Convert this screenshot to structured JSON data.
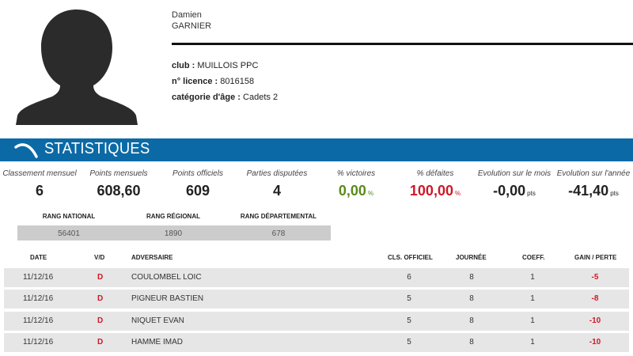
{
  "profile": {
    "first_name": "Damien",
    "last_name": "GARNIER",
    "club_label": "club :",
    "club_value": "MUILLOIS PPC",
    "licence_label": "n° licence :",
    "licence_value": "8016158",
    "category_label": "catégorie d'âge :",
    "category_value": "Cadets 2",
    "avatar_icon": "user-silhouette-icon"
  },
  "banner": {
    "title": "STATISTIQUES",
    "icon": "swoosh-icon",
    "color": "#0b6aa6"
  },
  "stats": [
    {
      "label": "Classement mensuel",
      "value": "6",
      "unit": ""
    },
    {
      "label": "Points mensuels",
      "value": "608,60",
      "unit": ""
    },
    {
      "label": "Points officiels",
      "value": "609",
      "unit": ""
    },
    {
      "label": "Parties disputées",
      "value": "4",
      "unit": ""
    },
    {
      "label": "% victoires",
      "value": "0,00",
      "unit": "%"
    },
    {
      "label": "% défaites",
      "value": "100,00",
      "unit": "%"
    },
    {
      "label": "Evolution sur le mois",
      "value": "-0,00",
      "unit": "pts"
    },
    {
      "label": "Evolution sur l'année",
      "value": "-41,40",
      "unit": "pts"
    }
  ],
  "ranks": [
    {
      "label": "RANG NATIONAL",
      "value": "56401"
    },
    {
      "label": "RANG RÉGIONAL",
      "value": "1890"
    },
    {
      "label": "RANG DÉPARTEMENTAL",
      "value": "678"
    }
  ],
  "table": {
    "headers": {
      "date": "DATE",
      "vd": "V/D",
      "adversaire": "ADVERSAIRE",
      "cls": "CLS. OFFICIEL",
      "journee": "JOURNÉE",
      "coeff": "COEFF.",
      "gain": "GAIN / PERTE"
    },
    "rows": [
      {
        "date": "11/12/16",
        "vd": "D",
        "adversaire": "COULOMBEL LOIC",
        "cls": "6",
        "journee": "8",
        "coeff": "1",
        "gain": "-5"
      },
      {
        "date": "11/12/16",
        "vd": "D",
        "adversaire": "PIGNEUR BASTIEN",
        "cls": "5",
        "journee": "8",
        "coeff": "1",
        "gain": "-8"
      },
      {
        "date": "11/12/16",
        "vd": "D",
        "adversaire": "NIQUET EVAN",
        "cls": "5",
        "journee": "8",
        "coeff": "1",
        "gain": "-10"
      },
      {
        "date": "11/12/16",
        "vd": "D",
        "adversaire": "HAMME IMAD",
        "cls": "5",
        "journee": "8",
        "coeff": "1",
        "gain": "-10"
      }
    ]
  }
}
